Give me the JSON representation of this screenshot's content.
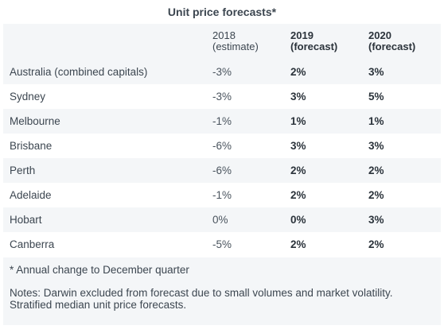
{
  "title": "Unit price forecasts*",
  "columns": [
    {
      "line1": "2018",
      "line2": "(estimate)"
    },
    {
      "line1": "2019",
      "line2": "(forecast)"
    },
    {
      "line1": "2020",
      "line2": "(forecast)"
    }
  ],
  "rows": [
    {
      "name": "Australia (combined capitals)",
      "y2018": "-3%",
      "y2019": "2%",
      "y2020": "3%"
    },
    {
      "name": "Sydney",
      "y2018": "-3%",
      "y2019": "3%",
      "y2020": "5%"
    },
    {
      "name": "Melbourne",
      "y2018": "-1%",
      "y2019": "1%",
      "y2020": "1%"
    },
    {
      "name": "Brisbane",
      "y2018": "-6%",
      "y2019": "3%",
      "y2020": "3%"
    },
    {
      "name": "Perth",
      "y2018": "-6%",
      "y2019": "2%",
      "y2020": "2%"
    },
    {
      "name": "Adelaide",
      "y2018": "-1%",
      "y2019": "2%",
      "y2020": "2%"
    },
    {
      "name": "Hobart",
      "y2018": "0%",
      "y2019": "0%",
      "y2020": "3%"
    },
    {
      "name": "Canberra",
      "y2018": "-5%",
      "y2019": "2%",
      "y2020": "2%"
    }
  ],
  "footnote": "* Annual change to December quarter",
  "notes": "Notes: Darwin excluded from forecast due to small volumes and market volatility. Stratified median unit price forecasts."
}
